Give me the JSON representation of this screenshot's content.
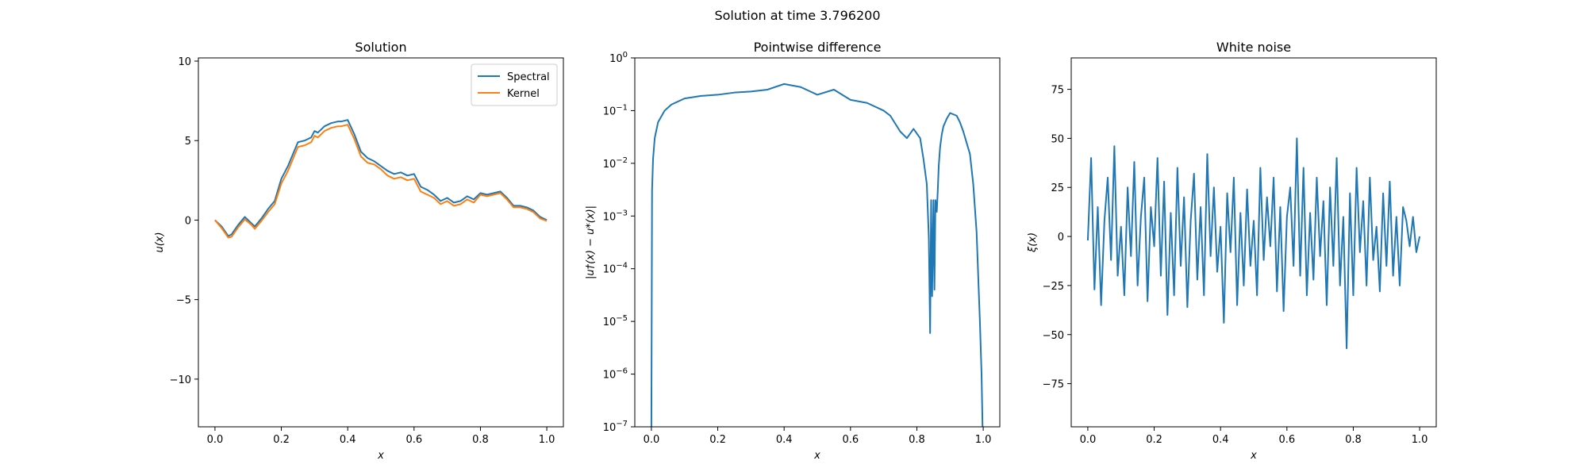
{
  "figure": {
    "suptitle": "Solution at time 3.796200"
  },
  "colors": {
    "series1": "#1f77b4",
    "series2": "#ff7f0e"
  },
  "chart_data": [
    {
      "type": "line",
      "title": "Solution",
      "xlabel": "x",
      "ylabel": "u(x)",
      "xlim": [
        -0.05,
        1.05
      ],
      "ylim": [
        -13.0,
        10.2
      ],
      "xticks": [
        0.0,
        0.2,
        0.4,
        0.6,
        0.8,
        1.0
      ],
      "xtick_labels": [
        "0.0",
        "0.2",
        "0.4",
        "0.6",
        "0.8",
        "1.0"
      ],
      "yticks": [
        10,
        5,
        0,
        -5,
        -10
      ],
      "ytick_labels": [
        "10",
        "5",
        "0",
        "−5",
        "−10"
      ],
      "legend_position": "top-right",
      "series": [
        {
          "name": "Spectral",
          "color": "#1f77b4",
          "x": [
            0,
            0.02,
            0.04,
            0.05,
            0.07,
            0.09,
            0.11,
            0.12,
            0.14,
            0.16,
            0.18,
            0.2,
            0.22,
            0.24,
            0.25,
            0.27,
            0.29,
            0.3,
            0.31,
            0.33,
            0.35,
            0.37,
            0.38,
            0.4,
            0.42,
            0.44,
            0.46,
            0.48,
            0.5,
            0.52,
            0.54,
            0.56,
            0.58,
            0.6,
            0.62,
            0.64,
            0.66,
            0.68,
            0.7,
            0.72,
            0.74,
            0.76,
            0.78,
            0.8,
            0.82,
            0.84,
            0.86,
            0.88,
            0.9,
            0.92,
            0.94,
            0.96,
            0.98,
            1.0
          ],
          "y": [
            0.0,
            -0.4,
            -1.0,
            -0.9,
            -0.3,
            0.2,
            -0.2,
            -0.4,
            0.1,
            0.7,
            1.2,
            2.6,
            3.4,
            4.4,
            4.9,
            5.0,
            5.2,
            5.6,
            5.5,
            5.9,
            6.1,
            6.2,
            6.2,
            6.3,
            5.4,
            4.3,
            3.9,
            3.7,
            3.4,
            3.1,
            2.9,
            3.0,
            2.8,
            2.9,
            2.1,
            1.9,
            1.6,
            1.2,
            1.4,
            1.1,
            1.2,
            1.5,
            1.3,
            1.7,
            1.6,
            1.7,
            1.8,
            1.4,
            0.9,
            0.9,
            0.8,
            0.6,
            0.2,
            0.0
          ]
        },
        {
          "name": "Kernel",
          "color": "#ff7f0e",
          "x": [
            0,
            0.02,
            0.04,
            0.05,
            0.07,
            0.09,
            0.11,
            0.12,
            0.14,
            0.16,
            0.18,
            0.2,
            0.22,
            0.24,
            0.25,
            0.27,
            0.29,
            0.3,
            0.31,
            0.33,
            0.35,
            0.37,
            0.38,
            0.4,
            0.42,
            0.44,
            0.46,
            0.48,
            0.5,
            0.52,
            0.54,
            0.56,
            0.58,
            0.6,
            0.62,
            0.64,
            0.66,
            0.68,
            0.7,
            0.72,
            0.74,
            0.76,
            0.78,
            0.8,
            0.82,
            0.84,
            0.86,
            0.88,
            0.9,
            0.92,
            0.94,
            0.96,
            0.98,
            1.0
          ],
          "y": [
            0.0,
            -0.5,
            -1.1,
            -1.05,
            -0.45,
            0.05,
            -0.3,
            -0.55,
            -0.05,
            0.5,
            1.0,
            2.3,
            3.1,
            4.1,
            4.6,
            4.7,
            4.9,
            5.3,
            5.2,
            5.6,
            5.8,
            5.9,
            5.9,
            6.0,
            5.1,
            4.0,
            3.6,
            3.5,
            3.2,
            2.8,
            2.6,
            2.7,
            2.5,
            2.6,
            1.8,
            1.6,
            1.4,
            1.0,
            1.2,
            0.9,
            1.0,
            1.3,
            1.1,
            1.6,
            1.5,
            1.6,
            1.7,
            1.3,
            0.8,
            0.8,
            0.7,
            0.5,
            0.1,
            -0.05
          ]
        }
      ]
    },
    {
      "type": "line",
      "title": "Pointwise difference",
      "xlabel": "x",
      "ylabel": "|u†(x) − u*(x)|",
      "yscale": "log",
      "xlim": [
        -0.05,
        1.05
      ],
      "ylim": [
        1e-07,
        1
      ],
      "xticks": [
        0.0,
        0.2,
        0.4,
        0.6,
        0.8,
        1.0
      ],
      "xtick_labels": [
        "0.0",
        "0.2",
        "0.4",
        "0.6",
        "0.8",
        "1.0"
      ],
      "yticks": [
        1.0,
        0.1,
        0.01,
        0.001,
        0.0001,
        1e-05,
        1e-06,
        1e-07
      ],
      "ytick_base": "10",
      "ytick_exponents": [
        "0",
        "−1",
        "−2",
        "−3",
        "−4",
        "−5",
        "−6",
        "−7"
      ],
      "series": [
        {
          "color": "#1f77b4",
          "x": [
            0.0,
            0.002,
            0.005,
            0.01,
            0.02,
            0.04,
            0.06,
            0.1,
            0.15,
            0.2,
            0.25,
            0.3,
            0.35,
            0.4,
            0.45,
            0.5,
            0.55,
            0.6,
            0.65,
            0.7,
            0.72,
            0.75,
            0.77,
            0.79,
            0.81,
            0.82,
            0.83,
            0.836,
            0.84,
            0.843,
            0.846,
            0.85,
            0.853,
            0.856,
            0.86,
            0.863,
            0.866,
            0.87,
            0.875,
            0.88,
            0.89,
            0.9,
            0.91,
            0.92,
            0.93,
            0.94,
            0.96,
            0.97,
            0.98,
            0.99,
            0.995,
            0.998,
            1.0
          ],
          "y": [
            1e-07,
            0.003,
            0.012,
            0.03,
            0.06,
            0.1,
            0.13,
            0.17,
            0.19,
            0.2,
            0.22,
            0.23,
            0.25,
            0.32,
            0.28,
            0.2,
            0.25,
            0.16,
            0.14,
            0.1,
            0.08,
            0.04,
            0.03,
            0.045,
            0.03,
            0.012,
            0.004,
            0.0004,
            6e-06,
            0.002,
            3e-05,
            0.002,
            4e-05,
            0.002,
            0.0012,
            0.003,
            0.009,
            0.02,
            0.035,
            0.05,
            0.07,
            0.09,
            0.085,
            0.08,
            0.06,
            0.04,
            0.015,
            0.004,
            0.0005,
            1e-05,
            1e-06,
            1e-07,
            1e-07
          ]
        }
      ]
    },
    {
      "type": "line",
      "title": "White noise",
      "xlabel": "x",
      "ylabel": "ξ(x)",
      "xlim": [
        -0.05,
        1.05
      ],
      "ylim": [
        -97,
        91
      ],
      "xticks": [
        0.0,
        0.2,
        0.4,
        0.6,
        0.8,
        1.0
      ],
      "xtick_labels": [
        "0.0",
        "0.2",
        "0.4",
        "0.6",
        "0.8",
        "1.0"
      ],
      "yticks": [
        75,
        50,
        25,
        0,
        -25,
        -50,
        -75
      ],
      "ytick_labels": [
        "75",
        "50",
        "25",
        "0",
        "−25",
        "−50",
        "−75"
      ],
      "series": [
        {
          "color": "#1f77b4",
          "x": [
            0.0,
            0.01,
            0.02,
            0.03,
            0.04,
            0.05,
            0.06,
            0.07,
            0.08,
            0.09,
            0.1,
            0.11,
            0.12,
            0.13,
            0.14,
            0.15,
            0.16,
            0.17,
            0.18,
            0.19,
            0.2,
            0.21,
            0.22,
            0.23,
            0.24,
            0.25,
            0.26,
            0.27,
            0.28,
            0.29,
            0.3,
            0.31,
            0.32,
            0.33,
            0.34,
            0.35,
            0.36,
            0.37,
            0.38,
            0.39,
            0.4,
            0.41,
            0.42,
            0.43,
            0.44,
            0.45,
            0.46,
            0.47,
            0.48,
            0.49,
            0.5,
            0.51,
            0.52,
            0.53,
            0.54,
            0.55,
            0.56,
            0.57,
            0.58,
            0.59,
            0.6,
            0.61,
            0.62,
            0.63,
            0.64,
            0.65,
            0.66,
            0.67,
            0.68,
            0.69,
            0.7,
            0.71,
            0.72,
            0.73,
            0.74,
            0.75,
            0.76,
            0.77,
            0.78,
            0.79,
            0.8,
            0.81,
            0.82,
            0.83,
            0.84,
            0.85,
            0.86,
            0.87,
            0.88,
            0.89,
            0.9,
            0.91,
            0.92,
            0.93,
            0.94,
            0.95,
            0.96,
            0.97,
            0.98,
            0.99,
            1.0
          ],
          "y": [
            -2,
            40,
            -27,
            15,
            -35,
            8,
            30,
            -12,
            46,
            -20,
            5,
            -30,
            25,
            -10,
            38,
            -25,
            10,
            30,
            -33,
            15,
            -5,
            40,
            -20,
            28,
            -40,
            12,
            -30,
            35,
            -15,
            20,
            -36,
            8,
            32,
            -22,
            15,
            -30,
            42,
            -10,
            25,
            -18,
            5,
            -44,
            22,
            -8,
            30,
            -35,
            12,
            -25,
            24,
            -15,
            8,
            -30,
            35,
            -12,
            20,
            -5,
            30,
            -28,
            15,
            -38,
            10,
            25,
            -15,
            50,
            -20,
            35,
            -30,
            12,
            -22,
            30,
            -10,
            18,
            -35,
            25,
            -15,
            40,
            -25,
            10,
            -57,
            22,
            -30,
            35,
            -8,
            18,
            -25,
            30,
            -12,
            5,
            -28,
            22,
            -15,
            28,
            -20,
            10,
            -25,
            15,
            8,
            -5,
            10,
            -8,
            0
          ]
        }
      ]
    }
  ]
}
